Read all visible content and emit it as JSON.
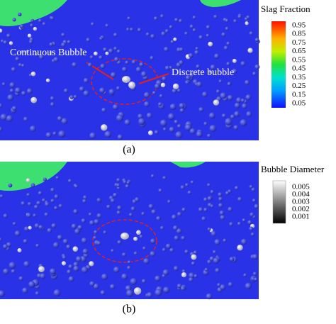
{
  "panels": [
    {
      "colorbar": {
        "title": "Slag Fraction",
        "ticks": [
          "0.95",
          "0.85",
          "0.75",
          "0.65",
          "0.55",
          "0.45",
          "0.35",
          "0.25",
          "0.15",
          "0.05"
        ]
      },
      "annotations": [
        "Continuous Bubble",
        "Discrete bubble"
      ],
      "caption": "(a)"
    },
    {
      "colorbar": {
        "title": "Bubble Diameter",
        "ticks": [
          "0.005",
          "0.004",
          "0.003",
          "0.002",
          "0.001"
        ]
      },
      "annotations": [],
      "caption": "(b)"
    }
  ]
}
